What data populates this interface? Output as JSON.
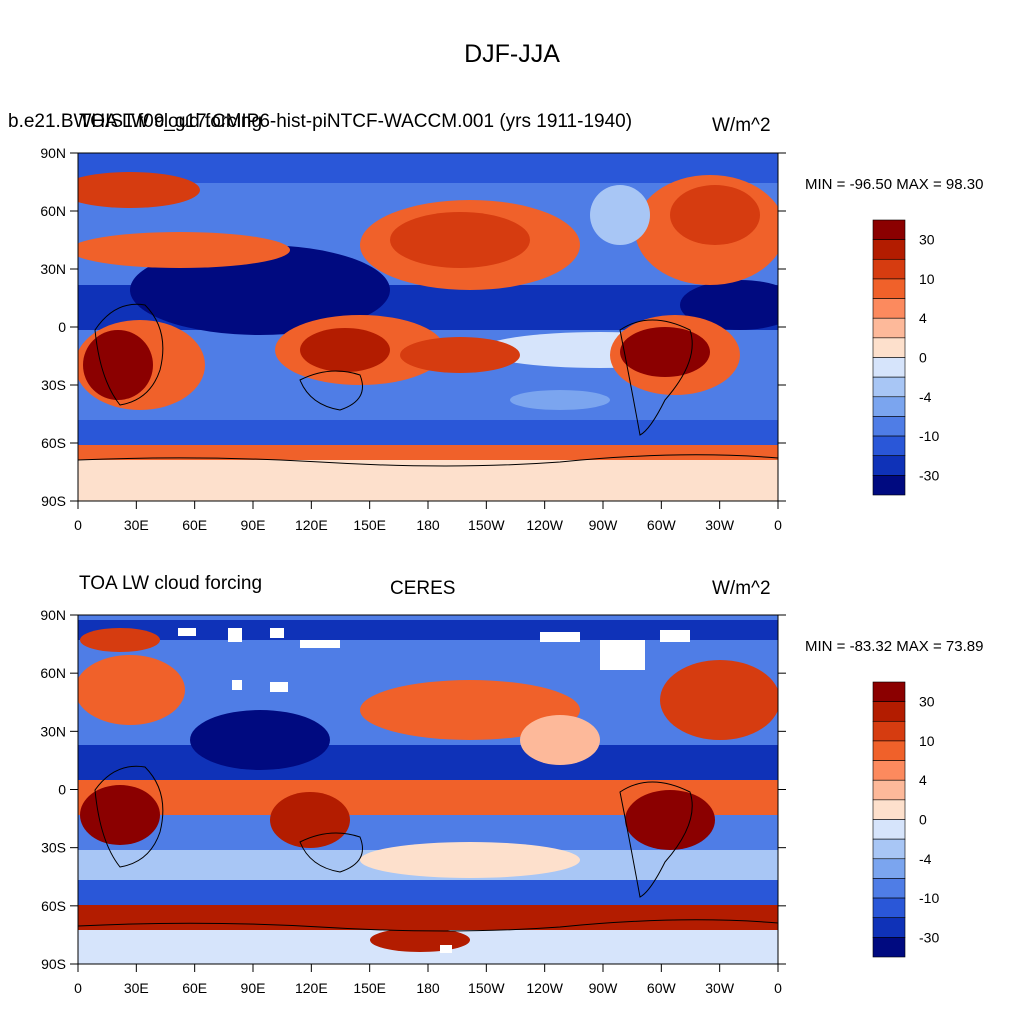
{
  "title": "DJF-JJA",
  "panels": [
    {
      "left_title": "TOA LW cloud forcing",
      "center_title": "b.e21.BWHIST.f09_g17.CMIP6-hist-piNTCF-WACCM.001 (yrs 1911-1940)",
      "units": "W/m^2",
      "minmax": "MIN = -96.50 MAX =  98.30"
    },
    {
      "left_title": "TOA LW cloud forcing",
      "center_title": "CERES",
      "units": "W/m^2",
      "minmax": "MIN = -83.32 MAX =  73.89"
    }
  ],
  "chart_data": [
    {
      "type": "heatmap",
      "title": "b.e21.BWHIST.f09_g17.CMIP6-hist-piNTCF-WACCM.001 (yrs 1911-1940)",
      "variable": "TOA LW cloud forcing",
      "units": "W/m^2",
      "min": -96.5,
      "max": 98.3,
      "xticks": [
        "0",
        "30E",
        "60E",
        "90E",
        "120E",
        "150E",
        "180",
        "150W",
        "120W",
        "90W",
        "60W",
        "30W",
        "0"
      ],
      "yticks": [
        "90N",
        "60N",
        "30N",
        "0",
        "30S",
        "60S",
        "90S"
      ],
      "xlim": [
        0,
        360
      ],
      "ylim": [
        -90,
        90
      ]
    },
    {
      "type": "heatmap",
      "title": "CERES",
      "variable": "TOA LW cloud forcing",
      "units": "W/m^2",
      "min": -83.32,
      "max": 73.89,
      "xticks": [
        "0",
        "30E",
        "60E",
        "90E",
        "120E",
        "150E",
        "180",
        "150W",
        "120W",
        "90W",
        "60W",
        "30W",
        "0"
      ],
      "yticks": [
        "90N",
        "60N",
        "30N",
        "0",
        "30S",
        "60S",
        "90S"
      ],
      "xlim": [
        0,
        360
      ],
      "ylim": [
        -90,
        90
      ]
    }
  ],
  "colorbar": {
    "labels": [
      "30",
      "10",
      "4",
      "0",
      "-4",
      "-10",
      "-30"
    ],
    "colors": [
      "#8b0000",
      "#b31c00",
      "#d63c10",
      "#f0612a",
      "#fc8a5e",
      "#fdb99a",
      "#fde0cc",
      "#d6e4fb",
      "#a8c6f5",
      "#7ba5ef",
      "#4f7de6",
      "#2a57d8",
      "#0f32b8",
      "#000a80"
    ]
  }
}
